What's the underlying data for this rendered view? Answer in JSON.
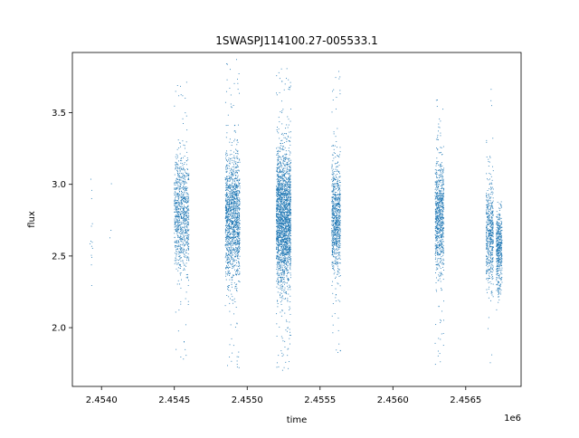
{
  "chart_data": {
    "type": "scatter",
    "title": "1SWASPJ114100.27-005533.1",
    "xlabel": "time",
    "ylabel": "flux",
    "x_offset_label": "1e6",
    "xlim": [
      2.4538,
      2.45688
    ],
    "ylim": [
      1.59,
      3.92
    ],
    "xticks": [
      2.454,
      2.4545,
      2.455,
      2.4555,
      2.456,
      2.4565
    ],
    "xtick_labels": [
      "2.4540",
      "2.4545",
      "2.4550",
      "2.4555",
      "2.4560",
      "2.4565"
    ],
    "yticks": [
      2.0,
      2.5,
      3.0,
      3.5
    ],
    "ytick_labels": [
      "2.0",
      "2.5",
      "3.0",
      "3.5"
    ],
    "grid": false,
    "marker_color": "#1f77b4",
    "clusters": [
      {
        "x_start": 2.45392,
        "x_end": 2.45394,
        "y_center": 2.72,
        "y_spread": 0.22,
        "y_min": 2.25,
        "y_max": 3.22,
        "n_points": 14
      },
      {
        "x_start": 2.45405,
        "x_end": 2.45407,
        "y_center": 2.8,
        "y_spread": 0.2,
        "y_min": 2.6,
        "y_max": 3.02,
        "n_points": 3
      },
      {
        "x_start": 2.4545,
        "x_end": 2.4546,
        "y_center": 2.8,
        "y_spread": 0.2,
        "y_min": 1.73,
        "y_max": 3.72,
        "n_points": 900
      },
      {
        "x_start": 2.45485,
        "x_end": 2.45495,
        "y_center": 2.77,
        "y_spread": 0.22,
        "y_min": 1.72,
        "y_max": 3.9,
        "n_points": 1400
      },
      {
        "x_start": 2.4552,
        "x_end": 2.4553,
        "y_center": 2.77,
        "y_spread": 0.23,
        "y_min": 1.7,
        "y_max": 3.82,
        "n_points": 2200
      },
      {
        "x_start": 2.45558,
        "x_end": 2.45564,
        "y_center": 2.77,
        "y_spread": 0.2,
        "y_min": 1.8,
        "y_max": 3.82,
        "n_points": 800
      },
      {
        "x_start": 2.45629,
        "x_end": 2.45635,
        "y_center": 2.77,
        "y_spread": 0.2,
        "y_min": 1.74,
        "y_max": 3.62,
        "n_points": 800
      },
      {
        "x_start": 2.45664,
        "x_end": 2.45669,
        "y_center": 2.65,
        "y_spread": 0.18,
        "y_min": 1.7,
        "y_max": 3.82,
        "n_points": 500
      },
      {
        "x_start": 2.45671,
        "x_end": 2.45675,
        "y_center": 2.55,
        "y_spread": 0.14,
        "y_min": 2.1,
        "y_max": 2.88,
        "n_points": 450
      }
    ]
  }
}
